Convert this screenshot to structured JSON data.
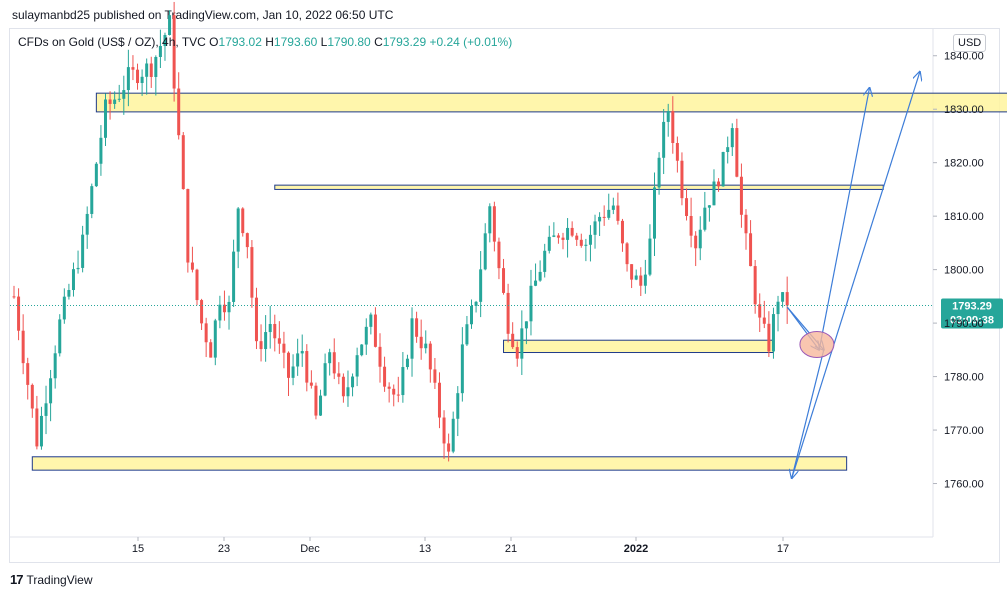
{
  "header": {
    "attribution": "sulaymanbd25 published on TradingView.com, Jan 10, 2022 06:50 UTC"
  },
  "legend": {
    "symbol": "CFDs on Gold (US$ / OZ), 4h, TVC",
    "o_label": "O",
    "o": "1793.02",
    "h_label": "H",
    "h": "1793.60",
    "l_label": "L",
    "l": "1790.80",
    "c_label": "C",
    "c": "1793.29",
    "change": "+0.24 (+0.01%)"
  },
  "currency_button": "USD",
  "footer": {
    "logo_mark": "17",
    "logo_text": "TradingView"
  },
  "colors": {
    "up": "#26a69a",
    "down": "#ef5350",
    "zone_fill": "#fff59d",
    "zone_border": "#1e3a8a",
    "arrow": "#3d7dd8",
    "price_tag": "#26a69a",
    "circle_fill": "#f7b89c",
    "circle_border": "#9b59b6"
  },
  "chart_data": {
    "type": "candlestick",
    "symbol": "CFDs on Gold (US$ / OZ)",
    "interval": "4h",
    "ylim": [
      1750,
      1845
    ],
    "y_ticks": [
      "1840.00",
      "1830.00",
      "1820.00",
      "1810.00",
      "1800.00",
      "1790.00",
      "1780.00",
      "1770.00",
      "1760.00"
    ],
    "x_ticks": [
      "15",
      "23",
      "Dec",
      "13",
      "21",
      "2022",
      "17"
    ],
    "current_price": "1793.29",
    "countdown": "03:09:38",
    "price_path": [
      [
        0,
        1795
      ],
      [
        5,
        1768
      ],
      [
        10,
        1790
      ],
      [
        15,
        1805
      ],
      [
        20,
        1830
      ],
      [
        23,
        1833
      ],
      [
        25,
        1836
      ],
      [
        30,
        1838
      ],
      [
        34,
        1846
      ],
      [
        38,
        1803
      ],
      [
        41,
        1790
      ],
      [
        43,
        1785
      ],
      [
        45,
        1795
      ],
      [
        47,
        1793
      ],
      [
        49,
        1812
      ],
      [
        51,
        1805
      ],
      [
        53,
        1785
      ],
      [
        56,
        1790
      ],
      [
        60,
        1780
      ],
      [
        63,
        1785
      ],
      [
        66,
        1772
      ],
      [
        69,
        1785
      ],
      [
        72,
        1775
      ],
      [
        75,
        1785
      ],
      [
        78,
        1790
      ],
      [
        81,
        1780
      ],
      [
        84,
        1775
      ],
      [
        87,
        1790
      ],
      [
        90,
        1785
      ],
      [
        93,
        1773
      ],
      [
        95,
        1765
      ],
      [
        98,
        1785
      ],
      [
        101,
        1795
      ],
      [
        104,
        1812
      ],
      [
        106,
        1800
      ],
      [
        108,
        1790
      ],
      [
        110,
        1785
      ],
      [
        113,
        1795
      ],
      [
        116,
        1803
      ],
      [
        119,
        1807
      ],
      [
        122,
        1808
      ],
      [
        125,
        1805
      ],
      [
        128,
        1810
      ],
      [
        131,
        1812
      ],
      [
        134,
        1800
      ],
      [
        137,
        1797
      ],
      [
        139,
        1805
      ],
      [
        141,
        1822
      ],
      [
        143,
        1830
      ],
      [
        146,
        1815
      ],
      [
        149,
        1805
      ],
      [
        151,
        1812
      ],
      [
        153,
        1815
      ],
      [
        155,
        1820
      ],
      [
        157,
        1828
      ],
      [
        159,
        1810
      ],
      [
        161,
        1800
      ],
      [
        163,
        1790
      ],
      [
        165,
        1786
      ],
      [
        167,
        1795
      ],
      [
        169,
        1793
      ]
    ],
    "zones": [
      {
        "from_x": 18,
        "to_x": 218,
        "lo": 1829.5,
        "hi": 1833
      },
      {
        "from_x": 57,
        "to_x": 190,
        "lo": 1815,
        "hi": 1815.8
      },
      {
        "from_x": 107,
        "to_x": 166,
        "lo": 1784.5,
        "hi": 1786.8
      },
      {
        "from_x": 4,
        "to_x": 182,
        "lo": 1762.5,
        "hi": 1765
      }
    ],
    "projection_arrows": [
      {
        "from": [
          169,
          1793
        ],
        "to": [
          176,
          1785
        ]
      },
      {
        "from": [
          176,
          1785
        ],
        "to": [
          187,
          1834
        ]
      },
      {
        "from": [
          169,
          1793
        ],
        "to": [
          177,
          1785
        ]
      },
      {
        "from": [
          177,
          1785
        ],
        "to": [
          170,
          1761
        ]
      },
      {
        "from": [
          170,
          1761
        ],
        "to": [
          198,
          1837
        ]
      }
    ],
    "highlight": {
      "x": 175.5,
      "y": 1786
    }
  }
}
